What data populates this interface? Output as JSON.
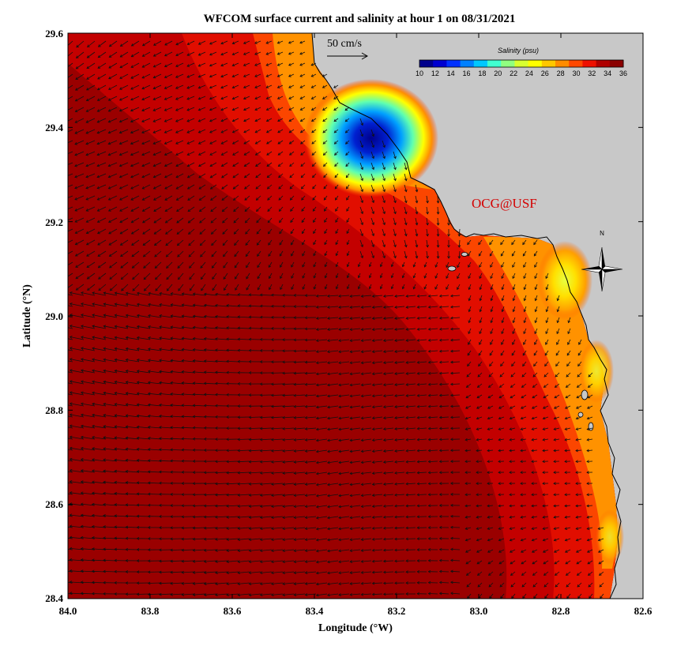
{
  "title": "WFCOM surface current and salinity at hour 1 on 08/31/2021",
  "credit": "OCG@USF",
  "x_axis": {
    "label": "Longitude (°W)",
    "ticks": [
      "84.0",
      "83.8",
      "83.6",
      "83.4",
      "83.2",
      "83.0",
      "82.8",
      "82.6"
    ],
    "range": [
      84.0,
      82.6
    ]
  },
  "y_axis": {
    "label": "Latitude (°N)",
    "ticks": [
      "29.6",
      "29.4",
      "29.2",
      "29.0",
      "28.8",
      "28.6",
      "28.4"
    ],
    "range": [
      28.4,
      29.6
    ]
  },
  "vector_scale": {
    "label": "50 cm/s"
  },
  "colorbar": {
    "title": "Salinity (psu)",
    "tick_labels": [
      "10",
      "12",
      "14",
      "16",
      "18",
      "20",
      "22",
      "24",
      "26",
      "28",
      "30",
      "32",
      "34",
      "36"
    ],
    "range": [
      10,
      36
    ],
    "colors": [
      "#00008c",
      "#0000d0",
      "#0030ff",
      "#0080ff",
      "#00c8ff",
      "#40ffd0",
      "#90ff80",
      "#d8ff30",
      "#ffff00",
      "#ffc800",
      "#ff8c00",
      "#ff4800",
      "#ee1000",
      "#b00000",
      "#8b0000"
    ]
  },
  "compass": {
    "north_label": "N"
  },
  "colors": {
    "land": "#c8c8c8",
    "coast": "#000000",
    "credit": "#d40000"
  }
}
